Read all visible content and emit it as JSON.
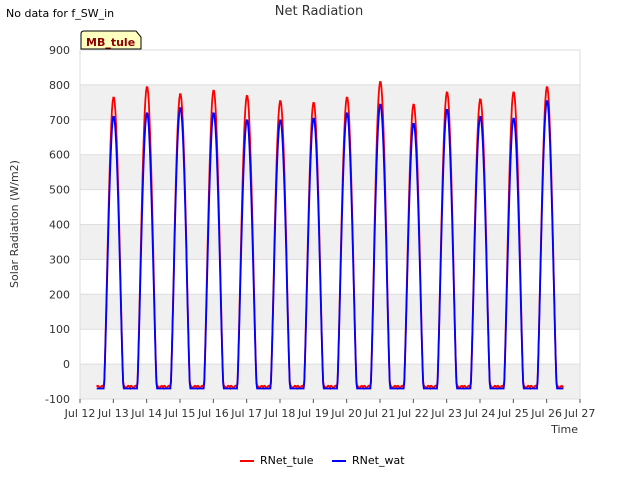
{
  "header": {
    "no_data_note": "No data for f_SW_in",
    "site_tag": "MB_tule"
  },
  "chart_data": {
    "type": "line",
    "title": "Net Radiation",
    "xlabel": "Time",
    "ylabel": "Solar Radiation (W/m2)",
    "x_categories": [
      "Jul 12",
      "Jul 13",
      "Jul 14",
      "Jul 15",
      "Jul 16",
      "Jul 17",
      "Jul 18",
      "Jul 19",
      "Jul 20",
      "Jul 21",
      "Jul 22",
      "Jul 23",
      "Jul 24",
      "Jul 25",
      "Jul 26",
      "Jul 27"
    ],
    "xlim": [
      12,
      27
    ],
    "ylim": [
      -100,
      900
    ],
    "y_ticks": [
      -100,
      0,
      100,
      200,
      300,
      400,
      500,
      600,
      700,
      800,
      900
    ],
    "grid": true,
    "legend_position": "bottom",
    "background_band_color": "#f0f0f0",
    "series": [
      {
        "name": "RNet_tule",
        "color": "#ff0000",
        "night_value": -65,
        "daily_peaks": [
          765,
          795,
          775,
          785,
          770,
          755,
          750,
          765,
          810,
          745,
          780,
          760,
          780,
          795
        ]
      },
      {
        "name": "RNet_wat",
        "color": "#0000ff",
        "night_value": -70,
        "daily_peaks": [
          710,
          720,
          735,
          720,
          700,
          700,
          705,
          720,
          745,
          690,
          730,
          710,
          705,
          755
        ]
      }
    ]
  }
}
